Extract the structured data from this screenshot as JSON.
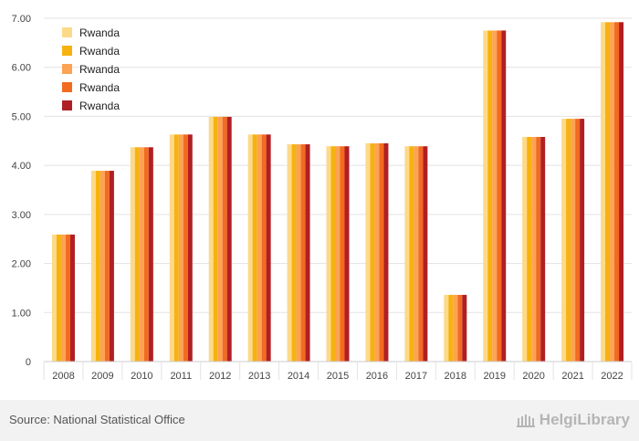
{
  "chart_data": {
    "type": "bar",
    "categories": [
      "2008",
      "2009",
      "2010",
      "2011",
      "2012",
      "2013",
      "2014",
      "2015",
      "2016",
      "2017",
      "2018",
      "2019",
      "2020",
      "2021",
      "2022"
    ],
    "series": [
      {
        "name": "Rwanda",
        "color": "#fdd98a",
        "values": [
          2.59,
          3.89,
          4.37,
          4.63,
          4.99,
          4.63,
          4.43,
          4.39,
          4.45,
          4.39,
          1.36,
          6.75,
          4.58,
          4.95,
          6.92
        ]
      },
      {
        "name": "Rwanda",
        "color": "#f6b20f",
        "values": [
          2.59,
          3.89,
          4.37,
          4.63,
          4.99,
          4.63,
          4.43,
          4.39,
          4.45,
          4.39,
          1.36,
          6.75,
          4.58,
          4.95,
          6.92
        ]
      },
      {
        "name": "Rwanda",
        "color": "#fca354",
        "values": [
          2.59,
          3.89,
          4.37,
          4.63,
          4.99,
          4.63,
          4.43,
          4.39,
          4.45,
          4.39,
          1.36,
          6.75,
          4.58,
          4.95,
          6.92
        ]
      },
      {
        "name": "Rwanda",
        "color": "#f26b21",
        "values": [
          2.59,
          3.89,
          4.37,
          4.63,
          4.99,
          4.63,
          4.43,
          4.39,
          4.45,
          4.39,
          1.36,
          6.75,
          4.58,
          4.95,
          6.92
        ]
      },
      {
        "name": "Rwanda",
        "color": "#b01f24",
        "values": [
          2.59,
          3.89,
          4.37,
          4.63,
          4.99,
          4.63,
          4.43,
          4.39,
          4.45,
          4.39,
          1.36,
          6.75,
          4.58,
          4.95,
          6.92
        ]
      }
    ],
    "yticks": [
      "0",
      "1.00",
      "2.00",
      "3.00",
      "4.00",
      "5.00",
      "6.00",
      "7.00"
    ],
    "ylim": [
      0,
      7
    ],
    "grid": true,
    "legend_position": "top-left"
  },
  "footer": {
    "source": "Source: National Statistical Office",
    "brand": "HelgiLibrary"
  }
}
